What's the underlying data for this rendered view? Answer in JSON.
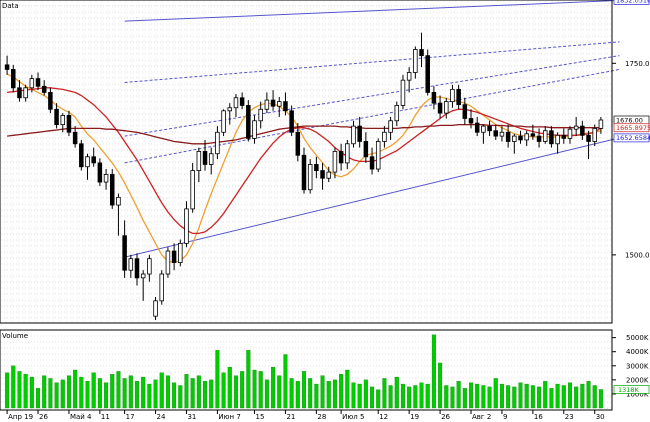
{
  "panels": {
    "price_title": "Data",
    "volume_title": "Volume"
  },
  "chart_data": {
    "type": "candlestick",
    "title": "Data",
    "grid": true,
    "y_axis_price": {
      "ticks": [
        1500.0,
        1750.0
      ],
      "tick_labels": [
        "1500.00",
        "1750.00"
      ],
      "ylim": [
        1415,
        1830
      ]
    },
    "y_axis_volume": {
      "ticks": [
        1000000,
        2000000,
        3000000,
        4000000,
        5000000
      ],
      "tick_labels": [
        "1000K",
        "2000K",
        "3000K",
        "4000K",
        "5000K"
      ],
      "ylim": [
        0,
        5400000
      ]
    },
    "x_axis": {
      "tick_labels": [
        "Апр 19",
        "26",
        "Май 4",
        "11",
        "17",
        "24",
        "31",
        "Июн 7",
        "15",
        "21",
        "28",
        "Июл 5",
        "12",
        "19",
        "26",
        "Авг 2",
        "9",
        "16",
        "23",
        "30"
      ],
      "tick_index": [
        0,
        5,
        10,
        15,
        19,
        24,
        29,
        34,
        40,
        45,
        50,
        54,
        60,
        65,
        70,
        75,
        80,
        85,
        90,
        95
      ]
    },
    "price_tags": [
      {
        "label": "1832.0516",
        "value": 1832.05,
        "color": "#2222dd"
      },
      {
        "label": "1676.00",
        "value": 1676.0,
        "color": "#000000"
      },
      {
        "label": "1665.8975",
        "value": 1665.9,
        "color": "#cc2222"
      },
      {
        "label": "1652.6584",
        "value": 1652.66,
        "color": "#2222dd"
      }
    ],
    "volume_tags": [
      {
        "label": "5000K",
        "value": 5000000,
        "color": "#000000"
      },
      {
        "label": "4000K",
        "value": 4000000,
        "color": "#000000"
      },
      {
        "label": "3000K",
        "value": 3000000,
        "color": "#000000"
      },
      {
        "label": "2000K",
        "value": 2000000,
        "color": "#000000"
      },
      {
        "label": "1000K",
        "value": 1000000,
        "color": "#000000"
      },
      {
        "label": "1318K",
        "value": 1318000,
        "color": "#00aa00"
      }
    ],
    "channel": {
      "x_start_index": 19,
      "x_end_index": 99,
      "lines": [
        {
          "start": 1805,
          "end": 1832.05,
          "color": "#5555cc",
          "dash": "solid"
        },
        {
          "start": 1725,
          "end": 1778,
          "color": "#5555cc",
          "dash": "dash"
        },
        {
          "start": 1655,
          "end": 1760,
          "color": "#5555cc",
          "dash": "dash"
        },
        {
          "start": 1620,
          "end": 1742,
          "color": "#5555cc",
          "dash": "dash"
        },
        {
          "start": 1497,
          "end": 1652.66,
          "color": "#5555cc",
          "dash": "solid"
        }
      ]
    },
    "ohlc": [
      [
        1748,
        1760,
        1735,
        1742
      ],
      [
        1742,
        1748,
        1712,
        1718
      ],
      [
        1718,
        1728,
        1700,
        1705
      ],
      [
        1705,
        1722,
        1700,
        1718
      ],
      [
        1718,
        1735,
        1712,
        1730
      ],
      [
        1730,
        1738,
        1715,
        1720
      ],
      [
        1720,
        1728,
        1708,
        1712
      ],
      [
        1712,
        1718,
        1685,
        1690
      ],
      [
        1690,
        1698,
        1665,
        1670
      ],
      [
        1670,
        1685,
        1660,
        1682
      ],
      [
        1682,
        1688,
        1655,
        1660
      ],
      [
        1660,
        1668,
        1640,
        1645
      ],
      [
        1645,
        1650,
        1610,
        1615
      ],
      [
        1615,
        1632,
        1598,
        1628
      ],
      [
        1628,
        1640,
        1615,
        1620
      ],
      [
        1620,
        1626,
        1590,
        1595
      ],
      [
        1595,
        1612,
        1585,
        1605
      ],
      [
        1605,
        1612,
        1560,
        1565
      ],
      [
        1565,
        1580,
        1525,
        1575
      ],
      [
        1525,
        1545,
        1470,
        1480
      ],
      [
        1480,
        1500,
        1470,
        1495
      ],
      [
        1495,
        1502,
        1460,
        1470
      ],
      [
        1470,
        1480,
        1440,
        1475
      ],
      [
        1475,
        1500,
        1465,
        1495
      ],
      [
        1420,
        1445,
        1415,
        1440
      ],
      [
        1440,
        1480,
        1435,
        1475
      ],
      [
        1475,
        1510,
        1470,
        1505
      ],
      [
        1505,
        1515,
        1480,
        1490
      ],
      [
        1490,
        1520,
        1485,
        1515
      ],
      [
        1515,
        1570,
        1510,
        1560
      ],
      [
        1560,
        1620,
        1555,
        1610
      ],
      [
        1610,
        1640,
        1595,
        1635
      ],
      [
        1635,
        1650,
        1610,
        1618
      ],
      [
        1618,
        1640,
        1605,
        1632
      ],
      [
        1632,
        1668,
        1625,
        1660
      ],
      [
        1660,
        1690,
        1655,
        1688
      ],
      [
        1688,
        1698,
        1670,
        1692
      ],
      [
        1692,
        1710,
        1680,
        1705
      ],
      [
        1705,
        1712,
        1690,
        1695
      ],
      [
        1695,
        1702,
        1648,
        1652
      ],
      [
        1652,
        1682,
        1645,
        1675
      ],
      [
        1675,
        1700,
        1665,
        1690
      ],
      [
        1690,
        1712,
        1685,
        1702
      ],
      [
        1702,
        1715,
        1688,
        1694
      ],
      [
        1694,
        1706,
        1680,
        1700
      ],
      [
        1700,
        1712,
        1682,
        1688
      ],
      [
        1688,
        1695,
        1655,
        1660
      ],
      [
        1660,
        1672,
        1622,
        1630
      ],
      [
        1630,
        1640,
        1580,
        1585
      ],
      [
        1585,
        1625,
        1580,
        1618
      ],
      [
        1618,
        1628,
        1600,
        1610
      ],
      [
        1610,
        1620,
        1585,
        1600
      ],
      [
        1600,
        1615,
        1595,
        1608
      ],
      [
        1608,
        1640,
        1600,
        1635
      ],
      [
        1635,
        1645,
        1610,
        1620
      ],
      [
        1620,
        1650,
        1612,
        1645
      ],
      [
        1645,
        1675,
        1640,
        1668
      ],
      [
        1668,
        1680,
        1640,
        1648
      ],
      [
        1648,
        1660,
        1620,
        1628
      ],
      [
        1628,
        1640,
        1605,
        1612
      ],
      [
        1612,
        1652,
        1608,
        1648
      ],
      [
        1648,
        1668,
        1640,
        1660
      ],
      [
        1660,
        1680,
        1650,
        1675
      ],
      [
        1675,
        1700,
        1668,
        1695
      ],
      [
        1695,
        1735,
        1690,
        1728
      ],
      [
        1728,
        1745,
        1712,
        1738
      ],
      [
        1738,
        1772,
        1730,
        1768
      ],
      [
        1768,
        1790,
        1745,
        1760
      ],
      [
        1760,
        1768,
        1708,
        1712
      ],
      [
        1712,
        1720,
        1690,
        1698
      ],
      [
        1698,
        1708,
        1678,
        1685
      ],
      [
        1685,
        1705,
        1678,
        1700
      ],
      [
        1700,
        1722,
        1692,
        1716
      ],
      [
        1716,
        1722,
        1690,
        1696
      ],
      [
        1696,
        1705,
        1670,
        1678
      ],
      [
        1678,
        1690,
        1665,
        1672
      ],
      [
        1672,
        1680,
        1655,
        1660
      ],
      [
        1660,
        1670,
        1645,
        1668
      ],
      [
        1668,
        1675,
        1655,
        1662
      ],
      [
        1662,
        1670,
        1650,
        1655
      ],
      [
        1655,
        1668,
        1648,
        1660
      ],
      [
        1660,
        1670,
        1640,
        1648
      ],
      [
        1648,
        1658,
        1632,
        1655
      ],
      [
        1655,
        1662,
        1645,
        1650
      ],
      [
        1650,
        1662,
        1642,
        1658
      ],
      [
        1658,
        1670,
        1650,
        1655
      ],
      [
        1655,
        1665,
        1640,
        1648
      ],
      [
        1648,
        1668,
        1645,
        1662
      ],
      [
        1662,
        1668,
        1640,
        1645
      ],
      [
        1645,
        1660,
        1632,
        1656
      ],
      [
        1656,
        1665,
        1645,
        1652
      ],
      [
        1652,
        1668,
        1645,
        1664
      ],
      [
        1664,
        1680,
        1655,
        1668
      ],
      [
        1668,
        1675,
        1650,
        1656
      ],
      [
        1656,
        1662,
        1625,
        1648
      ],
      [
        1648,
        1670,
        1642,
        1665
      ],
      [
        1665,
        1680,
        1658,
        1676
      ]
    ],
    "series": [
      {
        "color": "#f0a030",
        "values": [
          1736,
          1732,
          1726,
          1720,
          1716,
          1712,
          1708,
          1702,
          1695,
          1690,
          1686,
          1680,
          1668,
          1658,
          1650,
          1640,
          1630,
          1620,
          1608,
          1594,
          1578,
          1562,
          1545,
          1530,
          1515,
          1500,
          1492,
          1490,
          1492,
          1500,
          1515,
          1535,
          1558,
          1580,
          1600,
          1620,
          1640,
          1660,
          1675,
          1686,
          1692,
          1696,
          1698,
          1697,
          1694,
          1688,
          1680,
          1668,
          1652,
          1640,
          1630,
          1620,
          1610,
          1604,
          1602,
          1605,
          1612,
          1622,
          1630,
          1632,
          1634,
          1638,
          1642,
          1648,
          1656,
          1668,
          1682,
          1694,
          1702,
          1706,
          1706,
          1704,
          1702,
          1700,
          1698,
          1694,
          1688,
          1682,
          1676,
          1670,
          1666,
          1662,
          1658,
          1656,
          1655,
          1654,
          1654,
          1654,
          1654,
          1654,
          1654,
          1655,
          1656,
          1658,
          1659,
          1660,
          1662
        ]
      },
      {
        "color": "#cc2222",
        "values": [
          1712,
          1713,
          1714,
          1715,
          1716,
          1717,
          1718,
          1718,
          1717,
          1716,
          1714,
          1712,
          1708,
          1702,
          1696,
          1688,
          1680,
          1670,
          1660,
          1648,
          1636,
          1624,
          1610,
          1596,
          1582,
          1568,
          1556,
          1546,
          1538,
          1532,
          1528,
          1528,
          1530,
          1536,
          1544,
          1554,
          1566,
          1578,
          1590,
          1602,
          1614,
          1626,
          1636,
          1646,
          1654,
          1660,
          1664,
          1666,
          1666,
          1664,
          1660,
          1654,
          1648,
          1640,
          1634,
          1628,
          1624,
          1622,
          1622,
          1622,
          1624,
          1628,
          1632,
          1636,
          1642,
          1648,
          1654,
          1660,
          1666,
          1672,
          1678,
          1684,
          1688,
          1690,
          1690,
          1688,
          1686,
          1683,
          1680,
          1677,
          1674,
          1671,
          1668,
          1665,
          1663,
          1661,
          1659,
          1658,
          1657,
          1656,
          1656,
          1656,
          1656,
          1657,
          1658,
          1660,
          1665.9
        ]
      },
      {
        "color": "#8b1a1a",
        "values": [
          1655,
          1656,
          1657,
          1658,
          1659,
          1660,
          1661,
          1662,
          1663,
          1664,
          1665,
          1665,
          1665,
          1665,
          1665,
          1665,
          1664,
          1664,
          1663,
          1662,
          1661,
          1660,
          1658,
          1656,
          1654,
          1652,
          1650,
          1648,
          1647,
          1646,
          1645,
          1645,
          1645,
          1646,
          1647,
          1648,
          1649,
          1650,
          1652,
          1654,
          1656,
          1658,
          1660,
          1662,
          1664,
          1665,
          1666,
          1667,
          1668,
          1668,
          1668,
          1668,
          1668,
          1668,
          1667,
          1667,
          1666,
          1666,
          1665,
          1665,
          1665,
          1665,
          1665,
          1665,
          1666,
          1666,
          1667,
          1667,
          1668,
          1668,
          1669,
          1669,
          1669,
          1670,
          1670,
          1670,
          1670,
          1670,
          1669,
          1669,
          1669,
          1668,
          1668,
          1668,
          1667,
          1667,
          1667,
          1667,
          1666,
          1666,
          1666,
          1666,
          1666,
          1666,
          1666,
          1666,
          1666
        ]
      }
    ],
    "volume": [
      2500000,
      3000000,
      2600000,
      2400000,
      2200000,
      1400000,
      2300000,
      2100000,
      1800000,
      2000000,
      2300000,
      2700000,
      2200000,
      1900000,
      2500000,
      2100000,
      1800000,
      2400000,
      2600000,
      2100000,
      2300000,
      1900000,
      2200000,
      1700000,
      2000000,
      2500000,
      2300000,
      1800000,
      1600000,
      2400000,
      2100000,
      2300000,
      1900000,
      2000000,
      4100000,
      2500000,
      2900000,
      2300000,
      2600000,
      4100000,
      2700000,
      2600000,
      2000000,
      2900000,
      2300000,
      3800000,
      2100000,
      1900000,
      2600000,
      2100000,
      1700000,
      2300000,
      1900000,
      2000000,
      2400000,
      2700000,
      1800000,
      1700000,
      2000000,
      1500000,
      1300000,
      2100000,
      1600000,
      2200000,
      1700000,
      1500000,
      1600000,
      1800000,
      1700000,
      5200000,
      3200000,
      1600000,
      1500000,
      1900000,
      1400000,
      1800000,
      1700000,
      1600000,
      1500000,
      2100000,
      1700000,
      1600000,
      1500000,
      1800000,
      1700000,
      1600000,
      1500000,
      1900000,
      1400000,
      1700000,
      1600000,
      1800000,
      1500000,
      1700000,
      1900000,
      1600000,
      1318000
    ],
    "volume_colors": [
      "#00cc00",
      "#00cc00",
      "#00cc00",
      "#00cc00",
      "#00cc00",
      "#00cc00",
      "#00cc00",
      "#00cc00",
      "#00cc00",
      "#00cc00",
      "#00cc00",
      "#00cc00",
      "#00cc00",
      "#00cc00",
      "#00cc00",
      "#00cc00",
      "#00cc00",
      "#00cc00",
      "#00cc00",
      "#00cc00",
      "#00cc00",
      "#00cc00",
      "#00cc00",
      "#00cc00",
      "#00cc00",
      "#00cc00",
      "#00cc00",
      "#00cc00",
      "#00cc00",
      "#00cc00",
      "#00cc00",
      "#00cc00",
      "#00cc00",
      "#00cc00",
      "#00cc00",
      "#00cc00",
      "#00cc00",
      "#00cc00",
      "#00cc00",
      "#00cc00",
      "#00cc00",
      "#00cc00",
      "#00cc00",
      "#00cc00",
      "#00cc00",
      "#00cc00",
      "#00cc00",
      "#00cc00",
      "#00cc00",
      "#00cc00",
      "#00cc00",
      "#00cc00",
      "#00cc00",
      "#00cc00",
      "#00cc00",
      "#00cc00",
      "#00cc00",
      "#00cc00",
      "#00cc00",
      "#00cc00",
      "#00cc00",
      "#00cc00",
      "#00cc00",
      "#00cc00",
      "#00cc00",
      "#00cc00",
      "#00cc00",
      "#00cc00",
      "#00cc00",
      "#00cc00",
      "#00cc00",
      "#00cc00",
      "#00cc00",
      "#00cc00",
      "#00cc00",
      "#00cc00",
      "#00cc00",
      "#00cc00",
      "#00cc00",
      "#00cc00",
      "#00cc00",
      "#00cc00",
      "#00cc00",
      "#00cc00",
      "#00cc00",
      "#00cc00",
      "#00cc00",
      "#00cc00",
      "#00cc00",
      "#00cc00",
      "#00cc00",
      "#00cc00",
      "#00cc00",
      "#00cc00",
      "#00cc00",
      "#00cc00",
      "#00cc00"
    ]
  }
}
